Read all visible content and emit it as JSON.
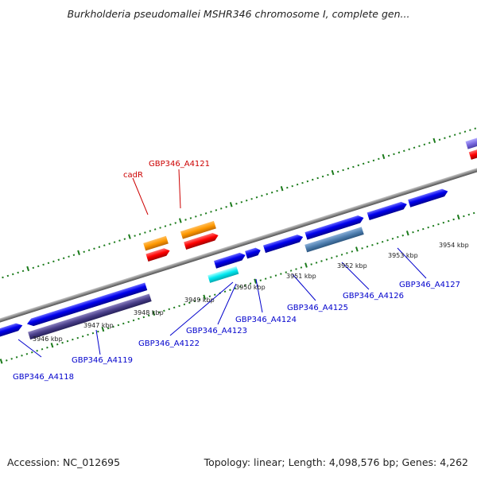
{
  "title": "Burkholderia pseudomallei MSHR346 chromosome I, complete gen...",
  "footer": {
    "accession": "Accession: NC_012695",
    "summary": "Topology: linear; Length: 4,098,576 bp; Genes: 4,262"
  },
  "colors": {
    "backbone": "#8a8a8a",
    "tick": "#1a7a1a",
    "label_forward": "#cc0000",
    "label_reverse": "#0000cc",
    "gene_blue": "#0000ee",
    "cds_navy": "#4a3f8a",
    "cds_steel": "#4f7fb0",
    "rna_cyan": "#00e8f0",
    "gene_orange": "#ff9900",
    "gene_red": "#ff0000",
    "gene_violet": "#7a6ae0"
  },
  "scale": {
    "unit": "kbp",
    "ticks": [
      {
        "kbp": 3946,
        "label": "3946 kbp"
      },
      {
        "kbp": 3947,
        "label": "3947 kbp"
      },
      {
        "kbp": 3948,
        "label": "3948 kbp"
      },
      {
        "kbp": 3949,
        "label": "3949 kbp"
      },
      {
        "kbp": 3950,
        "label": "3950 kbp"
      },
      {
        "kbp": 3951,
        "label": "3951 kbp"
      },
      {
        "kbp": 3952,
        "label": "3952 kbp"
      },
      {
        "kbp": 3953,
        "label": "3953 kbp"
      },
      {
        "kbp": 3954,
        "label": "3954 kbp"
      }
    ]
  },
  "genes_top": [
    {
      "name": "cadR",
      "strand": "forward"
    },
    {
      "name": "GBP346_A4121",
      "strand": "forward"
    }
  ],
  "genes_bottom": [
    {
      "name": "GBP346_A4118",
      "strand": "reverse"
    },
    {
      "name": "GBP346_A4119",
      "strand": "reverse"
    },
    {
      "name": "GBP346_A4122",
      "strand": "reverse"
    },
    {
      "name": "GBP346_A4123",
      "strand": "reverse"
    },
    {
      "name": "GBP346_A4124",
      "strand": "reverse"
    },
    {
      "name": "GBP346_A4125",
      "strand": "reverse"
    },
    {
      "name": "GBP346_A4126",
      "strand": "reverse"
    },
    {
      "name": "GBP346_A4127",
      "strand": "reverse"
    }
  ]
}
